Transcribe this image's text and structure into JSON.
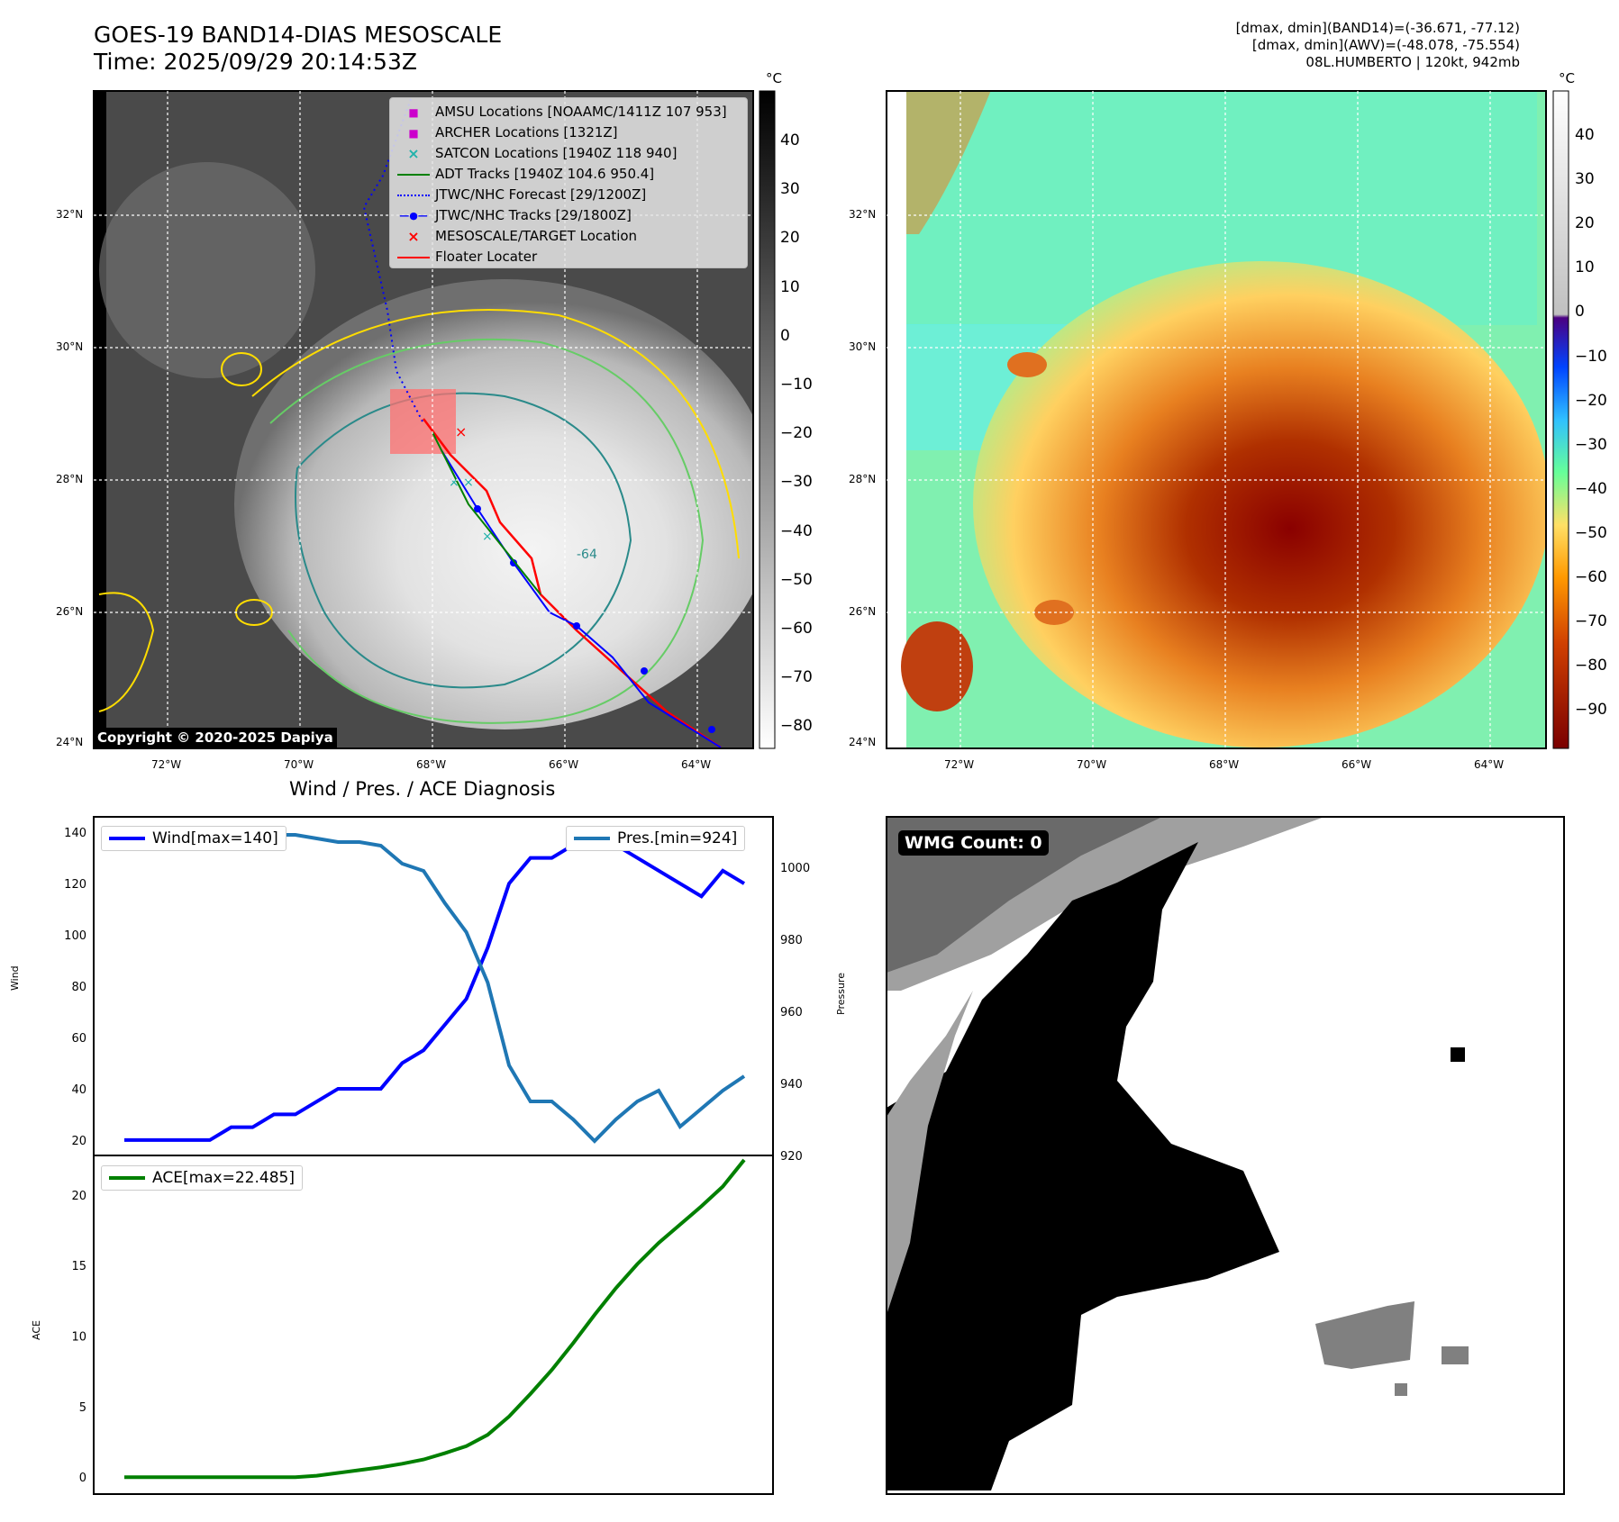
{
  "header": {
    "title_line1": "GOES-19 BAND14-DIAS MESOSCALE",
    "title_line2": "Time: 2025/09/29 20:14:53Z",
    "stats_line1": "[dmax, dmin](BAND14)=(-36.671, -77.12)",
    "stats_line2": "[dmax, dmin](AWV)=(-48.078, -75.554)",
    "stats_line3": "08L.HUMBERTO | 120kt, 942mb"
  },
  "map": {
    "lat_labels": [
      "32°N",
      "30°N",
      "28°N",
      "26°N",
      "24°N"
    ],
    "lon_labels": [
      "72°W",
      "70°W",
      "68°W",
      "66°W",
      "64°W"
    ],
    "copyright": "Copyright © 2020-2025 Dapiya",
    "contour_label": "-64",
    "legend": [
      {
        "label": "AMSU Locations [NOAAMC/1411Z 107 953]",
        "marker": "square",
        "color": "#cc00cc"
      },
      {
        "label": "ARCHER Locations [1321Z]",
        "marker": "square",
        "color": "#cc00cc"
      },
      {
        "label": "SATCON Locations [1940Z 118 940]",
        "marker": "x",
        "color": "#20b2aa"
      },
      {
        "label": "ADT Tracks [1940Z 104.6 950.4]",
        "marker": "line",
        "color": "#008000"
      },
      {
        "label": "JTWC/NHC Forecast [29/1200Z]",
        "marker": "dotted",
        "color": "#0000ff"
      },
      {
        "label": "JTWC/NHC Tracks [29/1800Z]",
        "marker": "dotline",
        "color": "#0000ff"
      },
      {
        "label": "MESOSCALE/TARGET Location",
        "marker": "x",
        "color": "#ff0000"
      },
      {
        "label": "Floater Locater",
        "marker": "line",
        "color": "#ff0000"
      }
    ]
  },
  "colorbar_left": {
    "unit": "°C",
    "ticks": [
      "40",
      "30",
      "20",
      "10",
      "0",
      "−10",
      "−20",
      "−30",
      "−40",
      "−50",
      "−60",
      "−70",
      "−80"
    ]
  },
  "colorbar_right": {
    "unit": "°C",
    "ticks": [
      "40",
      "30",
      "20",
      "10",
      "0",
      "−10",
      "−20",
      "−30",
      "−40",
      "−50",
      "−60",
      "−70",
      "−80",
      "−90"
    ]
  },
  "wmg": {
    "label": "WMG Count: 0"
  },
  "chart_data": [
    {
      "type": "line",
      "title": "Wind / Pres. / ACE Diagnosis",
      "ylabel": "Wind",
      "ylim": [
        14,
        146
      ],
      "yticks": [
        20,
        40,
        60,
        80,
        100,
        120,
        140
      ],
      "series": [
        {
          "name": "Wind[max=140]",
          "color": "#0000ff",
          "values": [
            20,
            20,
            20,
            20,
            20,
            25,
            25,
            30,
            30,
            35,
            40,
            40,
            40,
            50,
            55,
            65,
            75,
            95,
            120,
            130,
            130,
            135,
            140,
            135,
            130,
            125,
            120,
            115,
            125,
            120
          ]
        }
      ],
      "y2label": "Pressure",
      "y2lim": [
        920,
        1014
      ],
      "y2ticks": [
        920,
        940,
        960,
        980,
        1000
      ],
      "series2": [
        {
          "name": "Pres.[min=924]",
          "color": "#1f77b4",
          "values": [
            1010,
            1010,
            1010,
            1010,
            1010,
            1009,
            1009,
            1009,
            1009,
            1008,
            1007,
            1007,
            1006,
            1001,
            999,
            990,
            982,
            968,
            945,
            935,
            935,
            930,
            924,
            930,
            935,
            938,
            928,
            933,
            938,
            942
          ]
        }
      ]
    },
    {
      "type": "line",
      "ylabel": "ACE",
      "ylim": [
        -1.2,
        22.8
      ],
      "yticks": [
        0,
        5,
        10,
        15,
        20
      ],
      "series": [
        {
          "name": "ACE[max=22.485]",
          "color": "#008000",
          "values": [
            0,
            0,
            0,
            0,
            0,
            0,
            0,
            0,
            0,
            0.1,
            0.3,
            0.5,
            0.7,
            0.95,
            1.25,
            1.7,
            2.2,
            3.0,
            4.3,
            5.9,
            7.6,
            9.5,
            11.5,
            13.4,
            15.1,
            16.6,
            17.9,
            19.2,
            20.6,
            22.485
          ]
        }
      ]
    }
  ]
}
